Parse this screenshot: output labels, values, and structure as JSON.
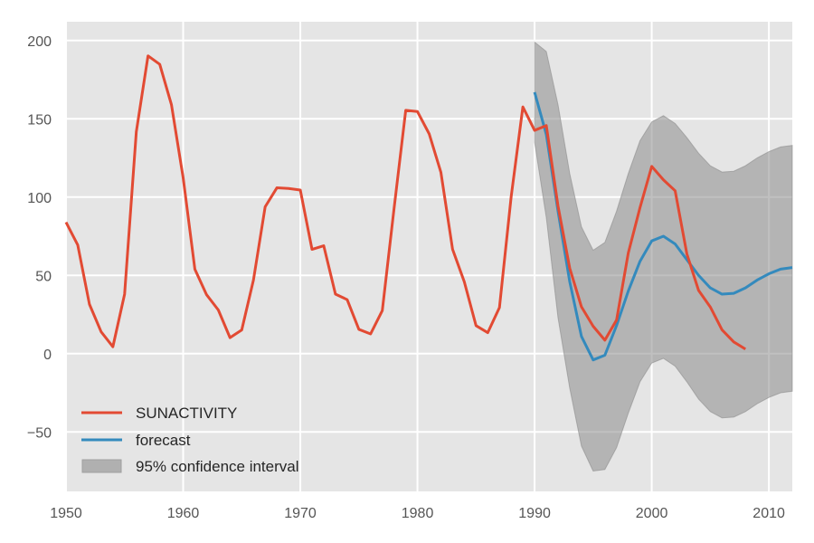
{
  "chart_data": {
    "type": "line",
    "title": "",
    "xlabel": "",
    "ylabel": "",
    "xlim": [
      1950,
      2012
    ],
    "ylim": [
      -88,
      212
    ],
    "grid": true,
    "style": "ggplot",
    "x_ticks": [
      1950,
      1960,
      1970,
      1980,
      1990,
      2000,
      2010
    ],
    "x_tick_labels": [
      "1950",
      "1960",
      "1970",
      "1980",
      "1990",
      "2000",
      "2010"
    ],
    "y_ticks": [
      -50,
      0,
      50,
      100,
      150,
      200
    ],
    "y_tick_labels": [
      "−50",
      "0",
      "50",
      "100",
      "150",
      "200"
    ],
    "legend_position": "lower-left",
    "series": [
      {
        "name": "SUNACTIVITY",
        "kind": "line",
        "color": "#E24A33",
        "x": [
          1950,
          1951,
          1952,
          1953,
          1954,
          1955,
          1956,
          1957,
          1958,
          1959,
          1960,
          1961,
          1962,
          1963,
          1964,
          1965,
          1966,
          1967,
          1968,
          1969,
          1970,
          1971,
          1972,
          1973,
          1974,
          1975,
          1976,
          1977,
          1978,
          1979,
          1980,
          1981,
          1982,
          1983,
          1984,
          1985,
          1986,
          1987,
          1988,
          1989,
          1990,
          1991,
          1992,
          1993,
          1994,
          1995,
          1996,
          1997,
          1998,
          1999,
          2000,
          2001,
          2002,
          2003,
          2004,
          2005,
          2006,
          2007,
          2008
        ],
        "values": [
          83.9,
          69.4,
          31.5,
          13.9,
          4.4,
          38.0,
          141.7,
          190.2,
          184.8,
          159.0,
          112.3,
          53.9,
          37.6,
          27.9,
          10.2,
          15.1,
          47.0,
          93.8,
          105.9,
          105.5,
          104.5,
          66.6,
          68.9,
          38.0,
          34.5,
          15.5,
          12.6,
          27.5,
          92.5,
          155.4,
          154.6,
          140.4,
          115.9,
          66.6,
          45.9,
          17.9,
          13.4,
          29.4,
          100.2,
          157.6,
          142.6,
          145.7,
          94.3,
          54.6,
          29.9,
          17.5,
          8.6,
          21.5,
          64.3,
          93.3,
          119.6,
          111.0,
          104.0,
          63.7,
          40.4,
          29.8,
          15.2,
          7.5,
          2.9
        ]
      },
      {
        "name": "forecast",
        "kind": "line",
        "color": "#348ABD",
        "x": [
          1990,
          1991,
          1992,
          1993,
          1994,
          1995,
          1996,
          1997,
          1998,
          1999,
          2000,
          2001,
          2002,
          2003,
          2004,
          2005,
          2006,
          2007,
          2008,
          2009,
          2010,
          2011,
          2012
        ],
        "values": [
          167,
          140,
          91,
          46,
          11,
          -4,
          -1,
          18,
          40,
          59,
          72,
          75,
          70,
          60,
          50,
          42,
          38,
          38.5,
          42,
          47,
          51,
          54,
          55
        ]
      },
      {
        "name": "95% confidence interval",
        "kind": "band",
        "color": "#9a9a9a",
        "x": [
          1990,
          1991,
          1992,
          1993,
          1994,
          1995,
          1996,
          1997,
          1998,
          1999,
          2000,
          2001,
          2002,
          2003,
          2004,
          2005,
          2006,
          2007,
          2008,
          2009,
          2010,
          2011,
          2012
        ],
        "upper": [
          199,
          193,
          159,
          115,
          81,
          66,
          71,
          91,
          115,
          136,
          148,
          152,
          147,
          138,
          128,
          120,
          116,
          116.5,
          120,
          125,
          129,
          132,
          133
        ],
        "lower": [
          135,
          87,
          23,
          -22,
          -59,
          -75,
          -74,
          -60,
          -38,
          -18,
          -6,
          -3,
          -8,
          -18,
          -29,
          -37,
          -41,
          -40.5,
          -37,
          -32,
          -28,
          -25,
          -24
        ]
      }
    ],
    "legend": [
      {
        "label": "SUNACTIVITY",
        "kind": "line",
        "color": "#E24A33"
      },
      {
        "label": "forecast",
        "kind": "line",
        "color": "#348ABD"
      },
      {
        "label": "95% confidence interval",
        "kind": "patch",
        "color": "#b0b0b0"
      }
    ]
  },
  "colors": {
    "plot_background": "#E5E5E5",
    "grid": "#FFFFFF",
    "tick_text": "#555555"
  }
}
